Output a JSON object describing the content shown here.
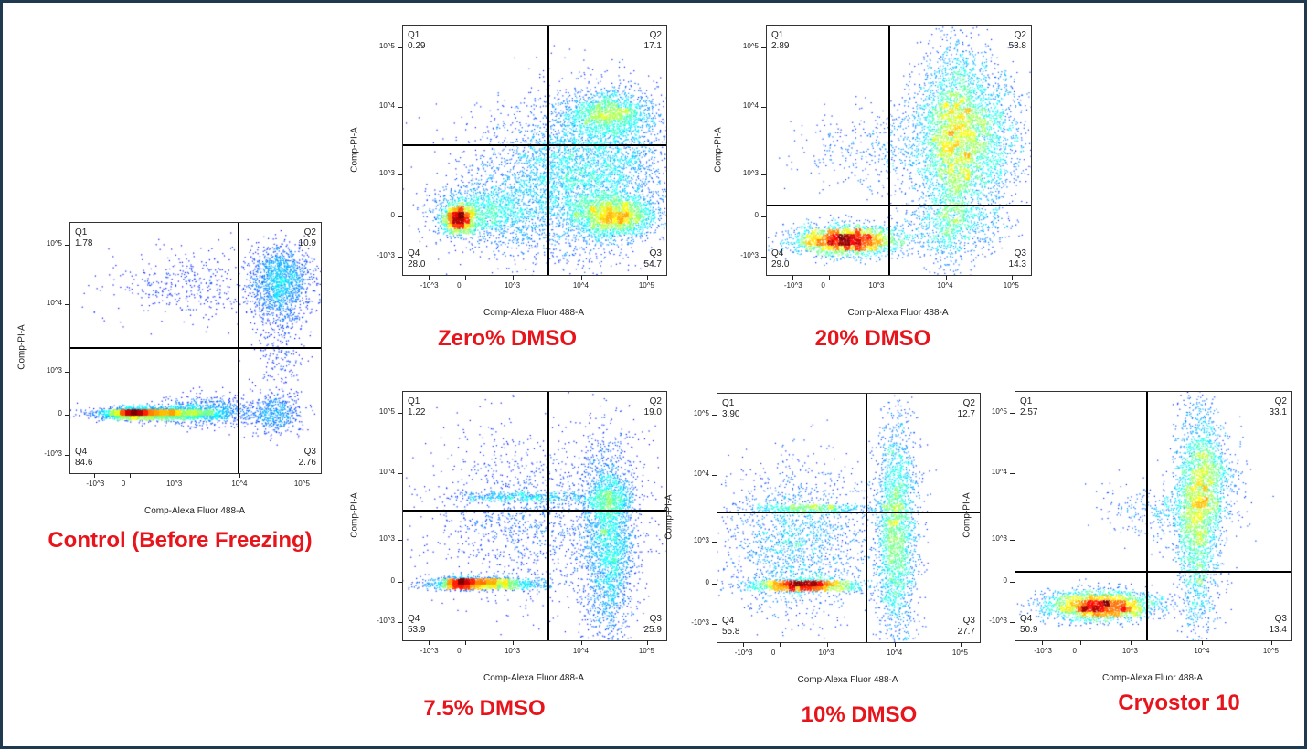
{
  "chart_data": [
    {
      "type": "scatter",
      "id": "control",
      "title": "Control (Before Freezing)",
      "xlabel": "Comp-Alexa Fluor 488-A",
      "ylabel": "Comp-PI-A",
      "x_scale": "biexponential",
      "y_scale": "biexponential",
      "quadrants": {
        "Q1": "1.78",
        "Q2": "10.9",
        "Q3": "2.76",
        "Q4": "84.6"
      },
      "gate": {
        "x": 9000,
        "y": 2000
      }
    },
    {
      "type": "scatter",
      "id": "zero",
      "title": "Zero% DMSO",
      "xlabel": "Comp-Alexa Fluor 488-A",
      "ylabel": "Comp-PI-A",
      "x_scale": "biexponential",
      "y_scale": "biexponential",
      "quadrants": {
        "Q1": "0.29",
        "Q2": "17.1",
        "Q3": "54.7",
        "Q4": "28.0"
      },
      "gate": {
        "x": 3000,
        "y": 2500
      }
    },
    {
      "type": "scatter",
      "id": "dmso20",
      "title": "20% DMSO",
      "xlabel": "Comp-Alexa Fluor 488-A",
      "ylabel": "Comp-PI-A",
      "x_scale": "biexponential",
      "y_scale": "biexponential",
      "quadrants": {
        "Q1": "2.89",
        "Q2": "53.8",
        "Q3": "14.3",
        "Q4": "29.0"
      },
      "gate": {
        "x": 1300,
        "y": 300
      }
    },
    {
      "type": "scatter",
      "id": "dmso75",
      "title": "7.5% DMSO",
      "xlabel": "Comp-Alexa Fluor 488-A",
      "ylabel": "Comp-PI-A",
      "x_scale": "biexponential",
      "y_scale": "biexponential",
      "quadrants": {
        "Q1": "1.22",
        "Q2": "19.0",
        "Q3": "25.9",
        "Q4": "53.9"
      },
      "gate": {
        "x": 3000,
        "y": 2500
      }
    },
    {
      "type": "scatter",
      "id": "dmso10",
      "title": "10% DMSO",
      "xlabel": "Comp-Alexa Fluor 488-A",
      "ylabel": "Comp-PI-A",
      "x_scale": "biexponential",
      "y_scale": "biexponential",
      "quadrants": {
        "Q1": "3.90",
        "Q2": "12.7",
        "Q3": "27.7",
        "Q4": "55.8"
      },
      "gate": {
        "x": 3500,
        "y": 2500
      }
    },
    {
      "type": "scatter",
      "id": "cryo",
      "title": "Cryostor 10",
      "xlabel": "Comp-Alexa Fluor 488-A",
      "ylabel": "Comp-PI-A",
      "x_scale": "biexponential",
      "y_scale": "biexponential",
      "quadrants": {
        "Q1": "2.57",
        "Q2": "33.1",
        "Q3": "13.4",
        "Q4": "50.9"
      },
      "gate": {
        "x": 1500,
        "y": 300
      }
    }
  ],
  "ticks": {
    "x": [
      "-10^3",
      "0",
      "10^3",
      "10^4",
      "10^5"
    ],
    "y": [
      "10^5",
      "10^4",
      "10^3",
      "0",
      "-10^3"
    ]
  },
  "colormap": "jet",
  "colors": {
    "title": "#e8141c",
    "frame": "#1f3a4f"
  }
}
